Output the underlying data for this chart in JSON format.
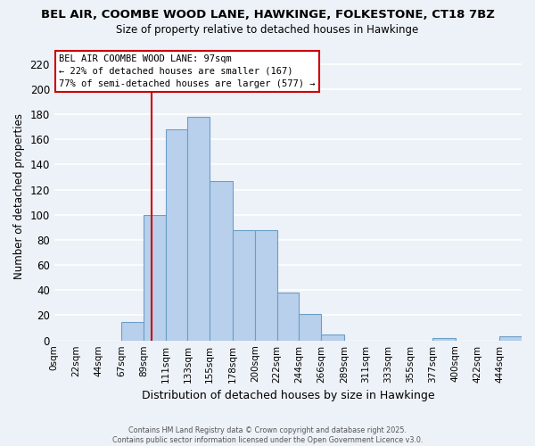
{
  "title_line1": "BEL AIR, COOMBE WOOD LANE, HAWKINGE, FOLKESTONE, CT18 7BZ",
  "title_line2": "Size of property relative to detached houses in Hawkinge",
  "xlabel": "Distribution of detached houses by size in Hawkinge",
  "ylabel": "Number of detached properties",
  "bin_labels": [
    "0sqm",
    "22sqm",
    "44sqm",
    "67sqm",
    "89sqm",
    "111sqm",
    "133sqm",
    "155sqm",
    "178sqm",
    "200sqm",
    "222sqm",
    "244sqm",
    "266sqm",
    "289sqm",
    "311sqm",
    "333sqm",
    "355sqm",
    "377sqm",
    "400sqm",
    "422sqm",
    "444sqm"
  ],
  "bin_edges": [
    0,
    22,
    44,
    67,
    89,
    111,
    133,
    155,
    178,
    200,
    222,
    244,
    266,
    289,
    311,
    333,
    355,
    377,
    400,
    422,
    444,
    466
  ],
  "bar_heights": [
    0,
    0,
    0,
    15,
    100,
    168,
    178,
    127,
    88,
    88,
    38,
    21,
    5,
    0,
    0,
    0,
    0,
    2,
    0,
    0,
    3
  ],
  "bar_color": "#b8d0eb",
  "bar_edge_color": "#6a9ec7",
  "property_size": 97,
  "vline_color": "#cc0000",
  "annotation_line1": "BEL AIR COOMBE WOOD LANE: 97sqm",
  "annotation_line2": "← 22% of detached houses are smaller (167)",
  "annotation_line3": "77% of semi-detached houses are larger (577) →",
  "annotation_box_facecolor": "#ffffff",
  "annotation_box_edgecolor": "#cc0000",
  "ylim": [
    0,
    230
  ],
  "yticks": [
    0,
    20,
    40,
    60,
    80,
    100,
    120,
    140,
    160,
    180,
    200,
    220
  ],
  "bg_color": "#edf2f8",
  "grid_color": "#ffffff",
  "footer_text": "Contains HM Land Registry data © Crown copyright and database right 2025.\nContains public sector information licensed under the Open Government Licence v3.0.",
  "figsize": [
    6.0,
    5.0
  ],
  "dpi": 100
}
